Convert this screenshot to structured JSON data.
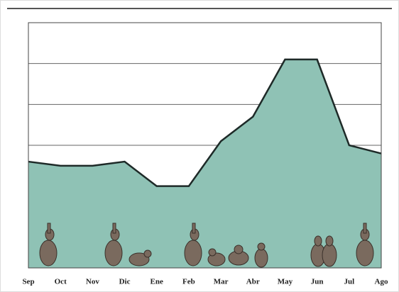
{
  "chart_data": {
    "type": "area",
    "categories": [
      "Sep",
      "Oct",
      "Nov",
      "Dic",
      "Ene",
      "Feb",
      "Mar",
      "Abr",
      "May",
      "Jun",
      "Jul",
      "Ago"
    ],
    "values": [
      2.6,
      2.5,
      2.5,
      2.6,
      2.0,
      2.0,
      3.1,
      3.7,
      5.1,
      5.1,
      3.0,
      2.8
    ],
    "color": "#8fc2b5",
    "line_color": "#1e2a28",
    "ylim": [
      0,
      6
    ],
    "yticks": [
      0,
      1,
      2,
      3,
      4,
      5,
      6
    ],
    "grid": true
  }
}
